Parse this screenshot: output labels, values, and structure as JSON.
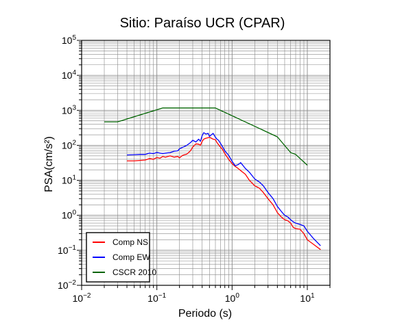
{
  "chart_data": {
    "type": "line",
    "title": "Sitio: Paraíso UCR (CPAR)",
    "xlabel": "Periodo (s)",
    "ylabel": "PSA(cm/s²)",
    "xscale": "log",
    "yscale": "log",
    "xlim": [
      0.01,
      20
    ],
    "ylim": [
      0.01,
      100000
    ],
    "grid": true,
    "legend_position": "bottom-left",
    "x_ticks": [
      {
        "value": 0.01,
        "base": "10",
        "exp": "−2"
      },
      {
        "value": 0.1,
        "base": "10",
        "exp": "−1"
      },
      {
        "value": 1,
        "base": "10",
        "exp": "0"
      },
      {
        "value": 10,
        "base": "10",
        "exp": "1"
      }
    ],
    "y_ticks": [
      {
        "value": 0.01,
        "base": "10",
        "exp": "−2"
      },
      {
        "value": 0.1,
        "base": "10",
        "exp": "−1"
      },
      {
        "value": 1,
        "base": "10",
        "exp": "0"
      },
      {
        "value": 10,
        "base": "10",
        "exp": "1"
      },
      {
        "value": 100,
        "base": "10",
        "exp": "2"
      },
      {
        "value": 1000,
        "base": "10",
        "exp": "3"
      },
      {
        "value": 10000,
        "base": "10",
        "exp": "4"
      },
      {
        "value": 100000,
        "base": "10",
        "exp": "5"
      }
    ],
    "series": [
      {
        "name": "Comp NS",
        "color": "#ff0000",
        "x": [
          0.04,
          0.05,
          0.06,
          0.07,
          0.08,
          0.09,
          0.1,
          0.11,
          0.12,
          0.13,
          0.15,
          0.17,
          0.19,
          0.2,
          0.22,
          0.25,
          0.28,
          0.3,
          0.33,
          0.36,
          0.38,
          0.4,
          0.42,
          0.45,
          0.48,
          0.5,
          0.53,
          0.56,
          0.6,
          0.63,
          0.66,
          0.7,
          0.75,
          0.8,
          0.9,
          1.0,
          1.1,
          1.2,
          1.3,
          1.5,
          1.7,
          2.0,
          2.3,
          2.6,
          3.0,
          3.5,
          4.0,
          4.5,
          5.0,
          5.5,
          6.0,
          6.5,
          7.0,
          8.0,
          9.0,
          10.0,
          12.0,
          15.0
        ],
        "values": [
          36,
          36,
          37,
          38,
          42,
          40,
          45,
          43,
          48,
          46,
          50,
          46,
          48,
          44,
          52,
          56,
          70,
          90,
          110,
          108,
          100,
          130,
          150,
          160,
          165,
          170,
          160,
          150,
          145,
          120,
          105,
          90,
          75,
          58,
          40,
          30,
          25,
          22,
          19,
          15,
          10,
          7.0,
          6.0,
          4.5,
          3.0,
          2.0,
          1.2,
          0.9,
          0.75,
          0.7,
          0.6,
          0.45,
          0.42,
          0.4,
          0.3,
          0.2,
          0.15,
          0.105
        ]
      },
      {
        "name": "Comp EW",
        "color": "#0000ff",
        "x": [
          0.04,
          0.05,
          0.06,
          0.07,
          0.08,
          0.09,
          0.1,
          0.11,
          0.12,
          0.13,
          0.15,
          0.17,
          0.19,
          0.2,
          0.22,
          0.25,
          0.28,
          0.3,
          0.33,
          0.36,
          0.38,
          0.4,
          0.42,
          0.45,
          0.48,
          0.5,
          0.53,
          0.56,
          0.6,
          0.63,
          0.66,
          0.7,
          0.75,
          0.8,
          0.9,
          1.0,
          1.1,
          1.2,
          1.3,
          1.5,
          1.7,
          2.0,
          2.3,
          2.6,
          3.0,
          3.5,
          4.0,
          4.5,
          5.0,
          5.5,
          6.0,
          6.5,
          7.0,
          8.0,
          9.0,
          10.0,
          12.0,
          15.0
        ],
        "values": [
          53,
          54,
          55,
          55,
          60,
          58,
          63,
          60,
          58,
          60,
          62,
          68,
          70,
          80,
          88,
          100,
          120,
          140,
          125,
          150,
          130,
          190,
          230,
          210,
          220,
          180,
          200,
          220,
          170,
          150,
          140,
          115,
          90,
          70,
          52,
          35,
          26,
          28,
          32,
          22,
          17,
          11,
          9.0,
          7.0,
          4.5,
          3.0,
          1.8,
          1.3,
          1.0,
          0.9,
          0.75,
          0.65,
          0.6,
          0.55,
          0.5,
          0.35,
          0.22,
          0.135
        ]
      },
      {
        "name": "CSCR 2010",
        "color": "#006400",
        "x": [
          0.02,
          0.03,
          0.12,
          0.6,
          4.0,
          6.0,
          7.0,
          10.0
        ],
        "values": [
          470,
          470,
          1170,
          1170,
          175,
          62,
          55,
          27
        ]
      }
    ]
  }
}
